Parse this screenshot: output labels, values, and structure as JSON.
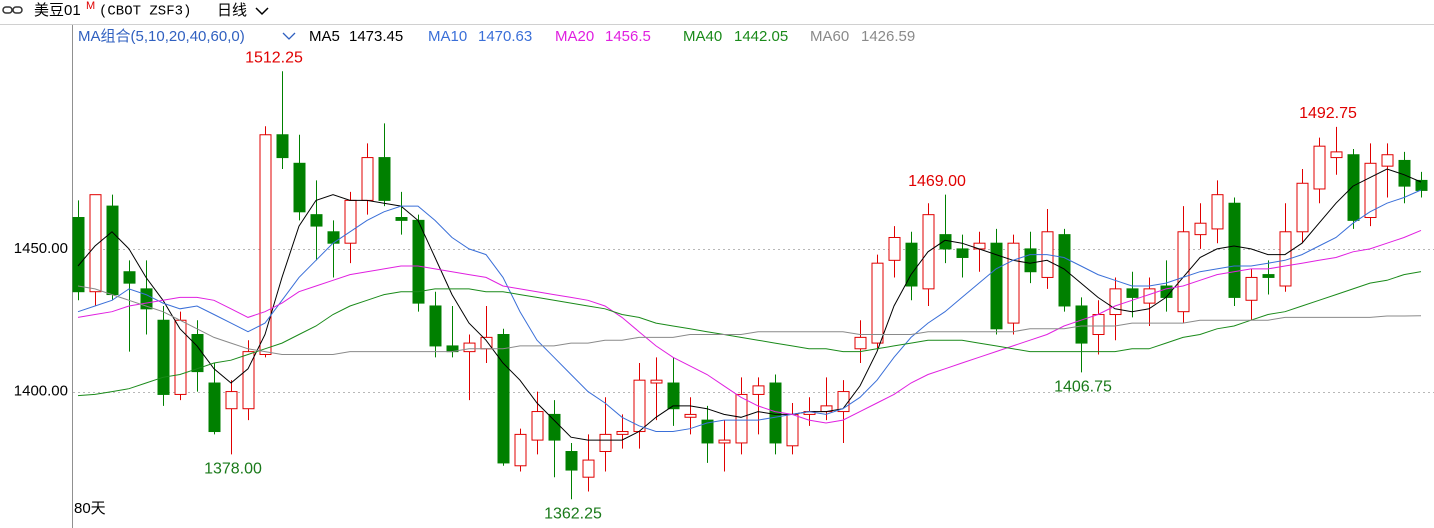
{
  "header": {
    "symbol": "美豆01",
    "badge": "M",
    "code": "(CBOT  ZSF3)",
    "period": "日线"
  },
  "chart_data": {
    "type": "candlestick",
    "ma_group": "MA组合(5,10,20,40,60,0)",
    "x_label": "80天",
    "ylim": [
      1355,
      1519
    ],
    "yticks": [
      {
        "value": 1400,
        "label": "1400.00"
      },
      {
        "value": 1450,
        "label": "1450.00"
      }
    ],
    "grid": true,
    "up_color": "#e00000",
    "down_color": "#008000",
    "candles": {
      "open": [
        1461,
        1435,
        1465,
        1442,
        1436,
        1425,
        1399,
        1420,
        1403,
        1394,
        1394,
        1413,
        1490,
        1480,
        1462,
        1456,
        1452,
        1467,
        1482,
        1461,
        1460,
        1430,
        1416,
        1414,
        1415,
        1420,
        1374,
        1383,
        1392,
        1379,
        1370,
        1379,
        1385,
        1386,
        1403,
        1403,
        1391,
        1390,
        1382,
        1382,
        1399,
        1403,
        1381,
        1392,
        1393,
        1393,
        1415,
        1417,
        1446,
        1452,
        1436,
        1455,
        1450,
        1450,
        1452,
        1424,
        1450,
        1440,
        1455,
        1430,
        1420,
        1427,
        1436,
        1431,
        1437,
        1428,
        1455,
        1457,
        1466,
        1432,
        1441,
        1437,
        1456,
        1471,
        1482,
        1483,
        1461,
        1479,
        1481,
        1474
      ],
      "high": [
        1467,
        1469,
        1469,
        1446,
        1446,
        1430,
        1428,
        1425,
        1410,
        1404,
        1418,
        1493,
        1512.25,
        1490,
        1474,
        1460,
        1470,
        1487,
        1494,
        1470,
        1462,
        1435,
        1430,
        1420,
        1430,
        1422,
        1387,
        1400,
        1397,
        1382,
        1385,
        1398,
        1392,
        1410,
        1412,
        1412,
        1398,
        1395,
        1390,
        1405,
        1405,
        1406,
        1396,
        1398,
        1405,
        1404,
        1425,
        1448,
        1458,
        1456,
        1466,
        1469,
        1455,
        1456,
        1457,
        1455,
        1456,
        1464,
        1457,
        1433,
        1432,
        1440,
        1442,
        1440,
        1446,
        1465,
        1466,
        1474,
        1468,
        1443,
        1446,
        1466,
        1478,
        1489,
        1492.75,
        1485,
        1487,
        1487,
        1484,
        1477
      ],
      "low": [
        1432,
        1430,
        1432,
        1414,
        1420,
        1395,
        1397,
        1400,
        1385,
        1378,
        1390,
        1412,
        1478,
        1460,
        1446,
        1440,
        1445,
        1462,
        1465,
        1455,
        1428,
        1412,
        1412,
        1397,
        1410,
        1374,
        1372,
        1378,
        1370,
        1362.25,
        1365,
        1372,
        1380,
        1380,
        1390,
        1388,
        1385,
        1375,
        1372,
        1378,
        1385,
        1378,
        1378,
        1388,
        1390,
        1382,
        1410,
        1415,
        1440,
        1432,
        1430,
        1445,
        1440,
        1442,
        1420,
        1420,
        1438,
        1436,
        1428,
        1406.75,
        1413,
        1418,
        1426,
        1423,
        1428,
        1424,
        1450,
        1452,
        1430,
        1425,
        1434,
        1435,
        1452,
        1466,
        1476,
        1457,
        1458,
        1468,
        1466,
        1468
      ],
      "close": [
        1435,
        1469,
        1434,
        1438,
        1429,
        1399,
        1425,
        1407,
        1386,
        1400,
        1414,
        1490,
        1482,
        1463,
        1458,
        1452,
        1467,
        1482,
        1467,
        1460,
        1431,
        1416,
        1414,
        1417,
        1419,
        1375,
        1385,
        1393,
        1383,
        1372.5,
        1376,
        1385,
        1386,
        1404,
        1404,
        1394,
        1392,
        1382,
        1383,
        1399,
        1402,
        1382,
        1392,
        1393,
        1395,
        1400,
        1419,
        1445,
        1454,
        1437,
        1462,
        1450,
        1447,
        1452,
        1422,
        1452,
        1442,
        1456,
        1430,
        1417,
        1427,
        1436,
        1433,
        1436,
        1433,
        1456,
        1459,
        1469,
        1433,
        1440,
        1440,
        1456,
        1473,
        1486,
        1484,
        1460,
        1480,
        1483,
        1472,
        1470.5
      ],
      "high_labels": [
        null,
        null,
        null,
        null,
        null,
        null,
        null,
        null,
        null,
        null,
        null,
        null,
        "1512.25",
        null,
        null,
        null,
        null,
        null,
        null,
        null,
        null,
        null,
        null,
        null,
        null,
        null,
        null,
        null,
        null,
        null,
        null,
        null,
        null,
        null,
        null,
        null,
        null,
        null,
        null,
        null,
        null,
        null,
        null,
        null,
        null,
        null,
        null,
        null,
        null,
        null,
        null,
        "1469.00",
        null,
        null,
        null,
        null,
        null,
        null,
        null,
        null,
        null,
        null,
        null,
        null,
        null,
        null,
        null,
        null,
        null,
        null,
        null,
        null,
        null,
        null,
        "1492.75",
        null,
        null,
        null,
        null,
        null
      ],
      "low_labels": [
        null,
        null,
        null,
        null,
        null,
        null,
        null,
        null,
        null,
        "1378.00",
        null,
        null,
        null,
        null,
        null,
        null,
        null,
        null,
        null,
        null,
        null,
        null,
        null,
        null,
        null,
        null,
        null,
        null,
        null,
        "1362.25",
        null,
        null,
        null,
        null,
        null,
        null,
        null,
        null,
        null,
        null,
        null,
        null,
        null,
        null,
        null,
        null,
        null,
        null,
        null,
        null,
        null,
        null,
        null,
        null,
        null,
        null,
        null,
        null,
        null,
        "1406.75",
        null,
        null,
        null,
        null,
        null,
        null,
        null,
        null,
        null,
        null,
        null,
        null,
        null,
        null,
        null,
        null,
        null,
        null,
        null,
        null
      ]
    },
    "series": [
      {
        "name": "MA5",
        "color": "#000000",
        "values": [
          1444,
          1451,
          1456,
          1450,
          1440,
          1432,
          1422,
          1416,
          1408,
          1403,
          1408,
          1420,
          1440,
          1458,
          1467,
          1469,
          1467,
          1467,
          1466,
          1465,
          1460,
          1447,
          1434,
          1424,
          1418,
          1410,
          1404,
          1396,
          1390,
          1384,
          1383,
          1383,
          1383,
          1386,
          1391,
          1395,
          1395,
          1394,
          1392,
          1391,
          1393,
          1392,
          1392,
          1393,
          1393,
          1394,
          1402,
          1414,
          1430,
          1441,
          1449,
          1453,
          1452,
          1450,
          1448,
          1446,
          1445,
          1446,
          1443,
          1438,
          1433,
          1429,
          1428,
          1429,
          1433,
          1440,
          1447,
          1450,
          1451,
          1450,
          1448,
          1448,
          1452,
          1459,
          1466,
          1472,
          1475,
          1478,
          1476,
          1473.45
        ]
      },
      {
        "name": "MA10",
        "color": "#3a6fd8",
        "values": [
          1428,
          1430,
          1432,
          1436,
          1434,
          1431,
          1429,
          1430,
          1427,
          1424,
          1421,
          1424,
          1432,
          1440,
          1446,
          1452,
          1456,
          1460,
          1463,
          1465,
          1465,
          1460,
          1454,
          1450,
          1448,
          1440,
          1428,
          1418,
          1412,
          1406,
          1400,
          1396,
          1391,
          1388,
          1386,
          1386,
          1387,
          1389,
          1390,
          1390,
          1390,
          1391,
          1392,
          1393,
          1392,
          1394,
          1398,
          1404,
          1412,
          1419,
          1424,
          1428,
          1433,
          1438,
          1443,
          1446,
          1448,
          1448,
          1447,
          1444,
          1441,
          1439,
          1437,
          1437,
          1438,
          1440,
          1442,
          1443,
          1444,
          1444,
          1445,
          1446,
          1448,
          1451,
          1454,
          1459,
          1463,
          1466,
          1468,
          1470.63
        ]
      },
      {
        "name": "MA20",
        "color": "#e020e0",
        "values": [
          1426,
          1427,
          1428,
          1430,
          1431,
          1432,
          1433,
          1433,
          1432,
          1429,
          1426,
          1428,
          1431,
          1435,
          1437,
          1439,
          1441,
          1442,
          1443,
          1444,
          1444,
          1443,
          1442,
          1441,
          1440,
          1437,
          1436,
          1435,
          1434,
          1433,
          1432,
          1430,
          1426,
          1421,
          1416,
          1412,
          1409,
          1406,
          1402,
          1398,
          1395,
          1393,
          1392,
          1390,
          1389,
          1390,
          1393,
          1396,
          1399,
          1403,
          1406,
          1408,
          1410,
          1412,
          1414,
          1416,
          1418,
          1420,
          1423,
          1425,
          1427,
          1430,
          1432,
          1434,
          1436,
          1437,
          1439,
          1441,
          1442,
          1443,
          1443,
          1444,
          1445,
          1446,
          1447,
          1449,
          1450,
          1452,
          1454,
          1456.5
        ]
      },
      {
        "name": "MA40",
        "color": "#1a8a1a",
        "values": [
          1398.6,
          1399,
          1400,
          1401,
          1403,
          1405,
          1406,
          1408,
          1410,
          1411,
          1413,
          1415,
          1417,
          1420,
          1423,
          1427,
          1430,
          1432,
          1434,
          1435,
          1435,
          1436,
          1436,
          1436,
          1435,
          1435,
          1434,
          1433,
          1432,
          1431,
          1430,
          1429,
          1427,
          1426,
          1424,
          1423,
          1422,
          1421,
          1420,
          1419,
          1418,
          1417,
          1416,
          1415,
          1415,
          1414,
          1414,
          1415,
          1416,
          1417,
          1418,
          1418,
          1418,
          1417,
          1416,
          1415,
          1414,
          1414,
          1414,
          1414,
          1414,
          1414,
          1415,
          1415,
          1417,
          1419,
          1420,
          1422,
          1423,
          1425,
          1427,
          1428,
          1430,
          1432,
          1434,
          1436,
          1438,
          1439,
          1441,
          1442.05
        ]
      },
      {
        "name": "MA60",
        "color": "#8a8a8a",
        "values": [
          1437,
          1436,
          1434,
          1432,
          1430,
          1428,
          1425,
          1422,
          1419,
          1417,
          1415,
          1414,
          1413,
          1413,
          1413,
          1413,
          1414,
          1414,
          1414,
          1414,
          1414,
          1414,
          1414,
          1415,
          1415,
          1415,
          1416,
          1416,
          1416,
          1417,
          1417,
          1418,
          1418,
          1419,
          1419,
          1419,
          1420,
          1420,
          1420,
          1420,
          1421,
          1421,
          1421,
          1421,
          1421,
          1421,
          1420,
          1420,
          1420,
          1420,
          1421,
          1421,
          1421,
          1421,
          1421,
          1421,
          1422,
          1422,
          1422,
          1423,
          1423,
          1423,
          1424,
          1424,
          1424,
          1424,
          1425,
          1425,
          1425,
          1425,
          1425,
          1426,
          1426,
          1426,
          1426,
          1426,
          1426,
          1426.5,
          1426.5,
          1426.59
        ]
      }
    ]
  }
}
